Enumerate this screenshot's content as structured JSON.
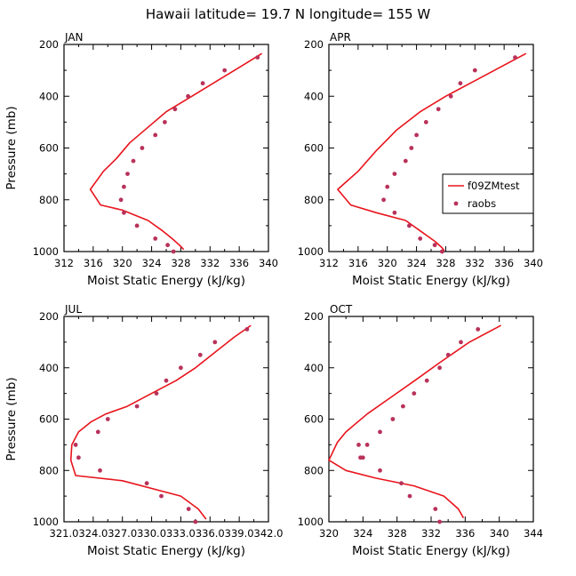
{
  "suptitle": "Hawaii  latitude= 19.7 N longitude= 155 W",
  "legend": {
    "items": [
      "f09ZMtest",
      "raobs"
    ]
  },
  "colors": {
    "model": "#e8141c",
    "obs": "#b8325a",
    "axis": "#000000"
  },
  "chart_data": [
    {
      "type": "line",
      "title": "JAN",
      "xlabel": "Moist Static Energy (kJ/kg)",
      "ylabel": "Pressure (mb)",
      "xlim": [
        312,
        340
      ],
      "ylim": [
        1000,
        200
      ],
      "xticks": [
        312,
        316,
        320,
        324,
        328,
        332,
        336,
        340
      ],
      "xtick_labels": [
        "312",
        "316",
        "320",
        "324",
        "328",
        "332",
        "336",
        "340"
      ],
      "yticks": [
        200,
        400,
        600,
        800,
        1000
      ],
      "ytick_labels": [
        "200",
        "400",
        "600",
        "800",
        "1000"
      ],
      "series": [
        {
          "name": "f09ZMtest",
          "style": "line",
          "x": [
            339.1,
            336.5,
            333.0,
            329.5,
            326.0,
            323.5,
            321.0,
            319.2,
            317.4,
            315.6,
            317.0,
            320.0,
            323.5,
            325.5,
            326.8,
            327.8,
            328.4
          ],
          "y": [
            235,
            280,
            340,
            400,
            460,
            520,
            580,
            640,
            690,
            760,
            820,
            840,
            880,
            920,
            950,
            975,
            992
          ]
        },
        {
          "name": "raobs",
          "style": "points",
          "x": [
            338.5,
            334.0,
            331.0,
            329.0,
            327.2,
            325.8,
            324.5,
            322.7,
            321.5,
            320.7,
            320.2,
            319.8,
            320.2,
            322.0,
            324.5,
            326.2,
            327.0
          ],
          "y": [
            250,
            300,
            350,
            400,
            450,
            500,
            550,
            600,
            650,
            700,
            750,
            800,
            850,
            900,
            950,
            975,
            1000
          ]
        }
      ]
    },
    {
      "type": "line",
      "title": "APR",
      "xlabel": "Moist Static Energy (kJ/kg)",
      "ylabel": "",
      "xlim": [
        312,
        340
      ],
      "ylim": [
        1000,
        200
      ],
      "xticks": [
        312,
        316,
        320,
        324,
        328,
        332,
        336,
        340
      ],
      "xtick_labels": [
        "312",
        "316",
        "320",
        "324",
        "328",
        "332",
        "336",
        "340"
      ],
      "yticks": [
        200,
        400,
        600,
        800,
        1000
      ],
      "ytick_labels": [
        "200",
        "400",
        "600",
        "800",
        "1000"
      ],
      "legend_position": "middle-right",
      "series": [
        {
          "name": "f09ZMtest",
          "style": "line",
          "x": [
            339.0,
            336.0,
            332.0,
            328.0,
            324.5,
            321.3,
            318.5,
            316.0,
            313.2,
            315.0,
            318.5,
            322.5,
            324.5,
            326.5,
            327.5,
            327.8
          ],
          "y": [
            235,
            280,
            340,
            400,
            460,
            530,
            610,
            690,
            760,
            820,
            850,
            880,
            920,
            960,
            985,
            997
          ]
        },
        {
          "name": "raobs",
          "style": "points",
          "x": [
            337.5,
            332.0,
            330.0,
            328.7,
            327.0,
            325.3,
            324.0,
            323.3,
            322.5,
            321.0,
            320.0,
            319.5,
            321.0,
            323.0,
            324.5,
            326.5,
            327.5
          ],
          "y": [
            250,
            300,
            350,
            400,
            450,
            500,
            550,
            600,
            650,
            700,
            750,
            800,
            850,
            900,
            950,
            975,
            1000
          ]
        }
      ]
    },
    {
      "type": "line",
      "title": "JUL",
      "xlabel": "Moist Static Energy (kJ/kg)",
      "ylabel": "Pressure (mb)",
      "xlim": [
        321,
        342
      ],
      "ylim": [
        1000,
        200
      ],
      "xticks": [
        321,
        324,
        327,
        330,
        333,
        336,
        339,
        342
      ],
      "xtick_labels": [
        "321.0",
        "324.0",
        "327.0",
        "330.0",
        "333.0",
        "336.0",
        "339.0",
        "342.0"
      ],
      "yticks": [
        200,
        400,
        600,
        800,
        1000
      ],
      "ytick_labels": [
        "200",
        "400",
        "600",
        "800",
        "1000"
      ],
      "series": [
        {
          "name": "f09ZMtest",
          "style": "line",
          "x": [
            340.2,
            338.5,
            336.5,
            334.5,
            332.5,
            330.0,
            327.5,
            325.3,
            323.8,
            322.5,
            321.8,
            321.7,
            322.2,
            327.0,
            333.0,
            334.8,
            335.6
          ],
          "y": [
            235,
            280,
            340,
            400,
            450,
            500,
            550,
            580,
            610,
            650,
            700,
            760,
            820,
            840,
            900,
            950,
            990
          ]
        },
        {
          "name": "raobs",
          "style": "points",
          "x": [
            339.8,
            336.5,
            335.0,
            333.0,
            331.5,
            330.5,
            328.5,
            325.5,
            324.5,
            322.2,
            322.5,
            324.7,
            329.5,
            331.0,
            333.8,
            334.5
          ],
          "y": [
            250,
            300,
            350,
            400,
            450,
            500,
            550,
            600,
            650,
            700,
            750,
            800,
            850,
            900,
            950,
            1000
          ]
        }
      ]
    },
    {
      "type": "line",
      "title": "OCT",
      "xlabel": "Moist Static Energy (kJ/kg)",
      "ylabel": "",
      "xlim": [
        320,
        344
      ],
      "ylim": [
        1000,
        200
      ],
      "xticks": [
        320,
        324,
        328,
        332,
        336,
        340,
        344
      ],
      "xtick_labels": [
        "320",
        "324",
        "328",
        "332",
        "336",
        "340",
        "344"
      ],
      "yticks": [
        200,
        400,
        600,
        800,
        1000
      ],
      "ytick_labels": [
        "200",
        "400",
        "600",
        "800",
        "1000"
      ],
      "series": [
        {
          "name": "f09ZMtest",
          "style": "line",
          "x": [
            340.2,
            336.5,
            333.0,
            330.5,
            327.5,
            324.5,
            322.0,
            321.0,
            320.0,
            322.0,
            325.5,
            330.0,
            333.5,
            335.2,
            335.8
          ],
          "y": [
            235,
            300,
            380,
            440,
            510,
            580,
            650,
            690,
            760,
            800,
            830,
            860,
            900,
            950,
            985
          ]
        },
        {
          "name": "raobs",
          "style": "points",
          "x": [
            337.5,
            335.5,
            334.0,
            333.0,
            331.5,
            330.0,
            328.7,
            327.5,
            326.0,
            324.5,
            324.0,
            323.5,
            323.7,
            326.0,
            328.5,
            329.5,
            332.5,
            333.0
          ],
          "y": [
            250,
            300,
            350,
            400,
            450,
            500,
            550,
            600,
            650,
            700,
            750,
            700,
            750,
            800,
            850,
            900,
            950,
            1000
          ]
        }
      ]
    }
  ]
}
